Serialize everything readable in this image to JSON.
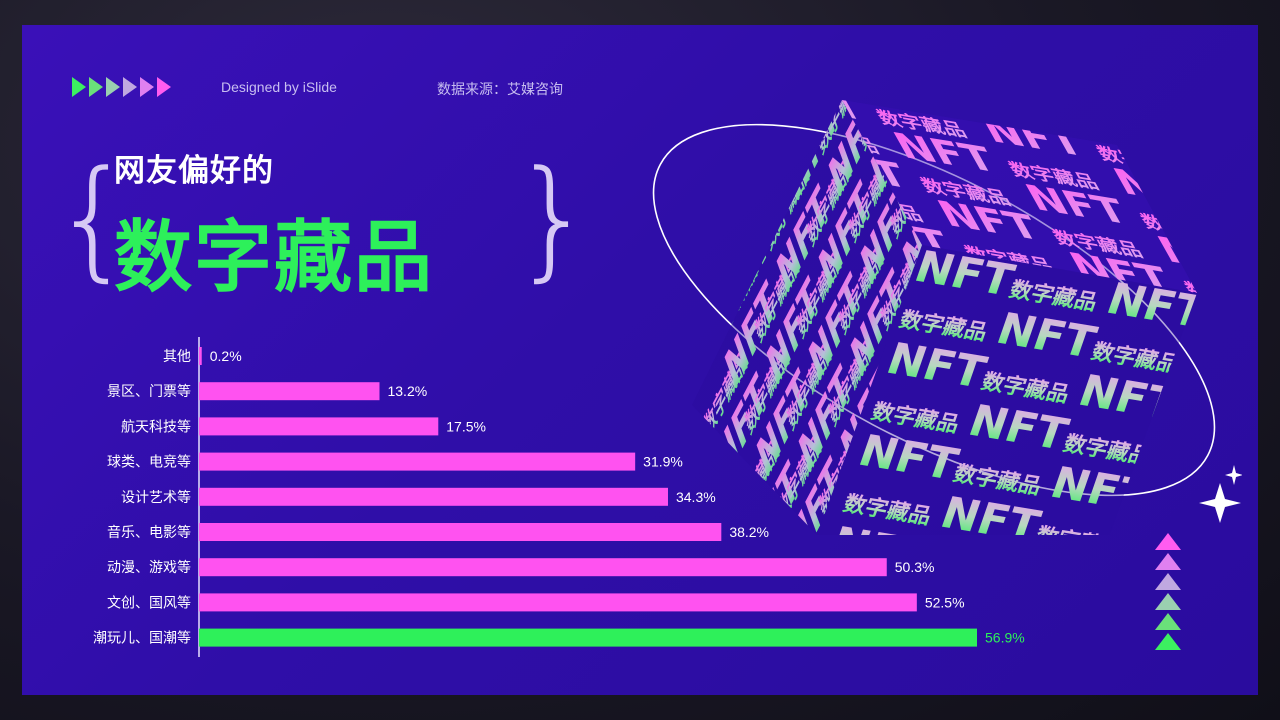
{
  "header": {
    "credit": "Designed by iSlide",
    "source": "数据来源：艾媒咨询"
  },
  "title": {
    "line1": "网友偏好的",
    "line2": "数字藏品"
  },
  "decor": {
    "brace_left": "{",
    "brace_right": "}",
    "cube_word_big": "NFT",
    "cube_word_small": "数字藏品",
    "header_arrow_colors": [
      "#3cf060",
      "#6ae07a",
      "#9ad0b0",
      "#c0a8e0",
      "#e080f0",
      "#ff5cf0"
    ],
    "side_triangle_colors": [
      "#ff5cf0",
      "#e080f0",
      "#c0a8e0",
      "#9ad0b0",
      "#6ae07a",
      "#3cf060"
    ]
  },
  "colors": {
    "background": "#3a10b8",
    "bar": "#ff52f0",
    "highlight_bar": "#2ef05a",
    "axis": "#e8e0ff",
    "label": "#ffffff"
  },
  "chart_data": {
    "type": "bar",
    "orientation": "horizontal",
    "categories": [
      "其他",
      "景区、门票等",
      "航天科技等",
      "球类、电竞等",
      "设计艺术等",
      "音乐、电影等",
      "动漫、游戏等",
      "文创、国风等",
      "潮玩儿、国潮等"
    ],
    "values": [
      0.2,
      13.2,
      17.5,
      31.9,
      34.3,
      38.2,
      50.3,
      52.5,
      56.9
    ],
    "value_labels": [
      "0.2%",
      "13.2%",
      "17.5%",
      "31.9%",
      "34.3%",
      "38.2%",
      "50.3%",
      "52.5%",
      "56.9%"
    ],
    "highlight_index": 8,
    "xlim": [
      0,
      56.9
    ],
    "grid": false,
    "legend": "none"
  }
}
